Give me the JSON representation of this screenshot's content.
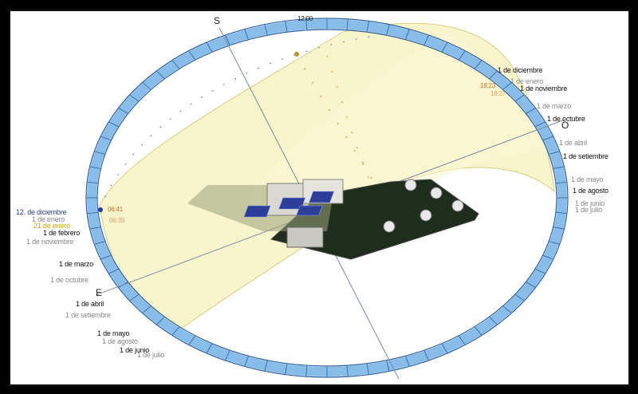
{
  "diagram": {
    "cardinals": {
      "south": "S",
      "east": "E",
      "west": "O"
    },
    "noon_label": "12:00",
    "time_markers": [
      "06:41",
      "18:23",
      "08:39",
      "18:37"
    ],
    "left_labels": [
      "12. de diciembre",
      "1 de enero",
      "21 de enero",
      "1 de febrero",
      "1 de noviembre",
      "1 de marzo",
      "1 de octubre",
      "1 de abril",
      "1 de setiembre",
      "1 de mayo",
      "1 de agosto",
      "1 de junio",
      "1 de julio"
    ],
    "right_labels": [
      "1 de diciembre",
      "1 de enero",
      "1 de noviembre",
      "1 de marzo",
      "1 de octubre",
      "1 de abril",
      "1 de setiembre",
      "1 de mayo",
      "1 de agosto",
      "1 de junio",
      "1 de julio"
    ],
    "colors": {
      "horizon_ring": "#87bde8",
      "ring_border": "#2b5fa0",
      "sun_dome": "#f5eeb0",
      "ground": "#1f2d1d",
      "solar_panels": "#2b3f9a"
    }
  }
}
